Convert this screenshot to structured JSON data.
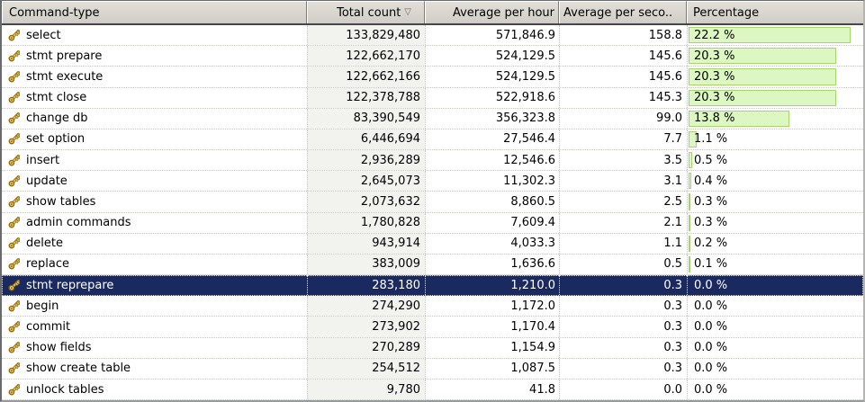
{
  "colors": {
    "selected_row_bg": "#1a2a60",
    "bar_fill": "#dcf7c1",
    "bar_border": "#a5d56b",
    "sorted_column_bg": "#f2f2ef",
    "key_icon_gold": "#f0be4a"
  },
  "header": {
    "sort_icon": "▽",
    "columns": {
      "command_type": "Command-type",
      "total_count": "Total count",
      "avg_per_hour": "Average per hour",
      "avg_per_second": "Average per seco..",
      "percentage": "Percentage"
    }
  },
  "table": {
    "rows": [
      {
        "command": "select",
        "total_count": "133,829,480",
        "avg_per_hour": "571,846.9",
        "avg_per_second": "158.8",
        "percentage": "22.2 %",
        "percentage_value": 22.2,
        "selected": false
      },
      {
        "command": "stmt prepare",
        "total_count": "122,662,170",
        "avg_per_hour": "524,129.5",
        "avg_per_second": "145.6",
        "percentage": "20.3 %",
        "percentage_value": 20.3,
        "selected": false
      },
      {
        "command": "stmt execute",
        "total_count": "122,662,166",
        "avg_per_hour": "524,129.5",
        "avg_per_second": "145.6",
        "percentage": "20.3 %",
        "percentage_value": 20.3,
        "selected": false
      },
      {
        "command": "stmt close",
        "total_count": "122,378,788",
        "avg_per_hour": "522,918.6",
        "avg_per_second": "145.3",
        "percentage": "20.3 %",
        "percentage_value": 20.3,
        "selected": false
      },
      {
        "command": "change db",
        "total_count": "83,390,549",
        "avg_per_hour": "356,323.8",
        "avg_per_second": "99.0",
        "percentage": "13.8 %",
        "percentage_value": 13.8,
        "selected": false
      },
      {
        "command": "set option",
        "total_count": "6,446,694",
        "avg_per_hour": "27,546.4",
        "avg_per_second": "7.7",
        "percentage": "1.1 %",
        "percentage_value": 1.1,
        "selected": false
      },
      {
        "command": "insert",
        "total_count": "2,936,289",
        "avg_per_hour": "12,546.6",
        "avg_per_second": "3.5",
        "percentage": "0.5 %",
        "percentage_value": 0.5,
        "selected": false
      },
      {
        "command": "update",
        "total_count": "2,645,073",
        "avg_per_hour": "11,302.3",
        "avg_per_second": "3.1",
        "percentage": "0.4 %",
        "percentage_value": 0.4,
        "selected": false
      },
      {
        "command": "show tables",
        "total_count": "2,073,632",
        "avg_per_hour": "8,860.5",
        "avg_per_second": "2.5",
        "percentage": "0.3 %",
        "percentage_value": 0.3,
        "selected": false
      },
      {
        "command": "admin commands",
        "total_count": "1,780,828",
        "avg_per_hour": "7,609.4",
        "avg_per_second": "2.1",
        "percentage": "0.3 %",
        "percentage_value": 0.3,
        "selected": false
      },
      {
        "command": "delete",
        "total_count": "943,914",
        "avg_per_hour": "4,033.3",
        "avg_per_second": "1.1",
        "percentage": "0.2 %",
        "percentage_value": 0.2,
        "selected": false
      },
      {
        "command": "replace",
        "total_count": "383,009",
        "avg_per_hour": "1,636.6",
        "avg_per_second": "0.5",
        "percentage": "0.1 %",
        "percentage_value": 0.1,
        "selected": false
      },
      {
        "command": "stmt reprepare",
        "total_count": "283,180",
        "avg_per_hour": "1,210.0",
        "avg_per_second": "0.3",
        "percentage": "0.0 %",
        "percentage_value": 0.0,
        "selected": true
      },
      {
        "command": "begin",
        "total_count": "274,290",
        "avg_per_hour": "1,172.0",
        "avg_per_second": "0.3",
        "percentage": "0.0 %",
        "percentage_value": 0.0,
        "selected": false
      },
      {
        "command": "commit",
        "total_count": "273,902",
        "avg_per_hour": "1,170.4",
        "avg_per_second": "0.3",
        "percentage": "0.0 %",
        "percentage_value": 0.0,
        "selected": false
      },
      {
        "command": "show fields",
        "total_count": "270,289",
        "avg_per_hour": "1,154.9",
        "avg_per_second": "0.3",
        "percentage": "0.0 %",
        "percentage_value": 0.0,
        "selected": false
      },
      {
        "command": "show create table",
        "total_count": "254,512",
        "avg_per_hour": "1,087.5",
        "avg_per_second": "0.3",
        "percentage": "0.0 %",
        "percentage_value": 0.0,
        "selected": false
      },
      {
        "command": "unlock tables",
        "total_count": "9,780",
        "avg_per_hour": "41.8",
        "avg_per_second": "0.0",
        "percentage": "0.0 %",
        "percentage_value": 0.0,
        "selected": false
      }
    ]
  }
}
